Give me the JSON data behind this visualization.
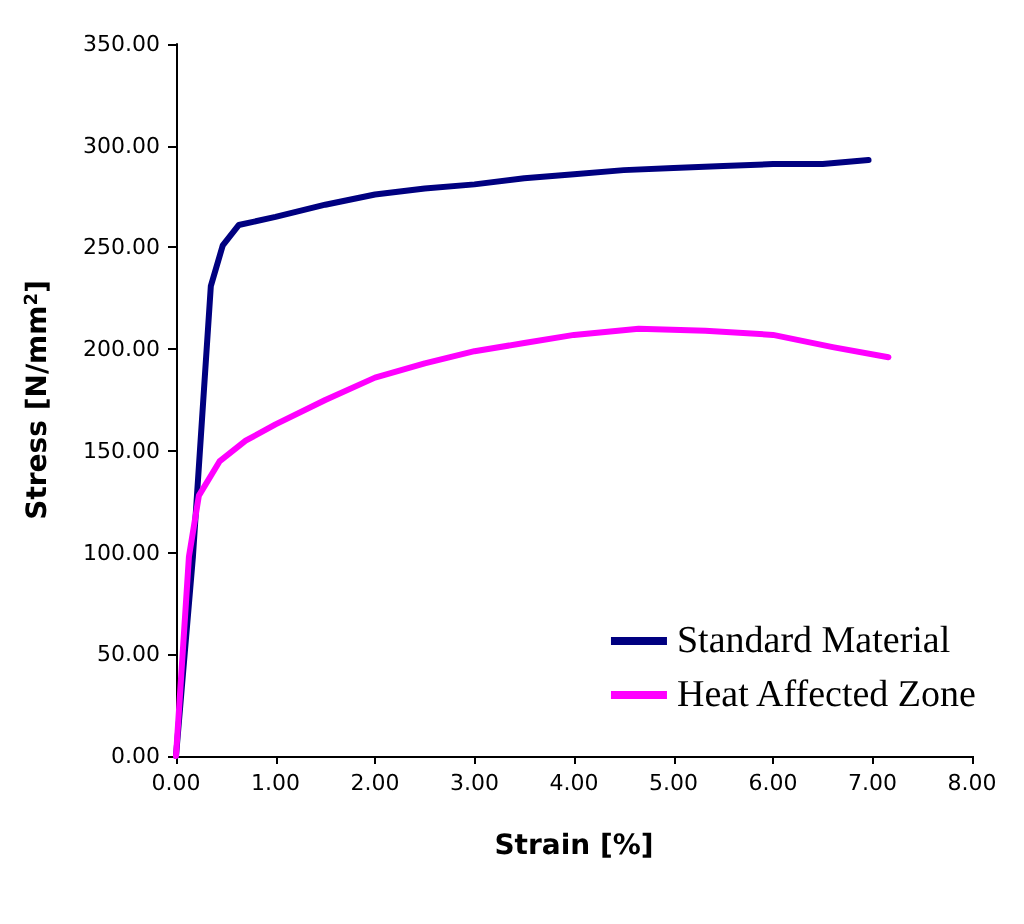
{
  "chart_data": {
    "type": "line",
    "xlabel": "Strain [%]",
    "ylabel": "Stress [N/mm$^{2}$]",
    "xlim": [
      0,
      8
    ],
    "ylim": [
      0,
      350
    ],
    "xticks": [
      {
        "value": 0,
        "label": "0.00"
      },
      {
        "value": 1,
        "label": "1.00"
      },
      {
        "value": 2,
        "label": "2.00"
      },
      {
        "value": 3,
        "label": "3.00"
      },
      {
        "value": 4,
        "label": "4.00"
      },
      {
        "value": 5,
        "label": "5.00"
      },
      {
        "value": 6,
        "label": "6.00"
      },
      {
        "value": 7,
        "label": "7.00"
      },
      {
        "value": 8,
        "label": "8.00"
      }
    ],
    "yticks": [
      {
        "value": 0,
        "label": "0.00"
      },
      {
        "value": 50,
        "label": "50.00"
      },
      {
        "value": 100,
        "label": "100.00"
      },
      {
        "value": 150,
        "label": "150.00"
      },
      {
        "value": 200,
        "label": "200.00"
      },
      {
        "value": 250,
        "label": "250.00"
      },
      {
        "value": 300,
        "label": "300.00"
      },
      {
        "value": 350,
        "label": "350.00"
      }
    ],
    "grid": false,
    "legend": "bottom right",
    "marker": "none",
    "line_style": "solid",
    "series": [
      {
        "name": "Standard Material",
        "color": "#000080",
        "x": [
          0,
          0.17,
          0.35,
          0.47,
          0.63,
          1.0,
          1.5,
          2.0,
          2.5,
          3.0,
          3.5,
          4.0,
          4.5,
          5.0,
          5.5,
          6.0,
          6.5,
          6.96
        ],
        "values": [
          0,
          98,
          231,
          251,
          261,
          265,
          271,
          276,
          279,
          281,
          284,
          286,
          288,
          289,
          290,
          291,
          291,
          293
        ]
      },
      {
        "name": "Heat Affected Zone",
        "color": "#ff00ff",
        "x": [
          0,
          0.13,
          0.23,
          0.44,
          0.7,
          1.0,
          1.5,
          2.0,
          2.5,
          3.0,
          3.5,
          4.0,
          4.65,
          5.32,
          6.0,
          6.6,
          7.16
        ],
        "values": [
          0,
          98,
          128,
          145,
          155,
          163,
          175,
          186,
          193,
          199,
          203,
          207,
          210,
          209,
          207,
          201,
          196
        ]
      }
    ]
  }
}
